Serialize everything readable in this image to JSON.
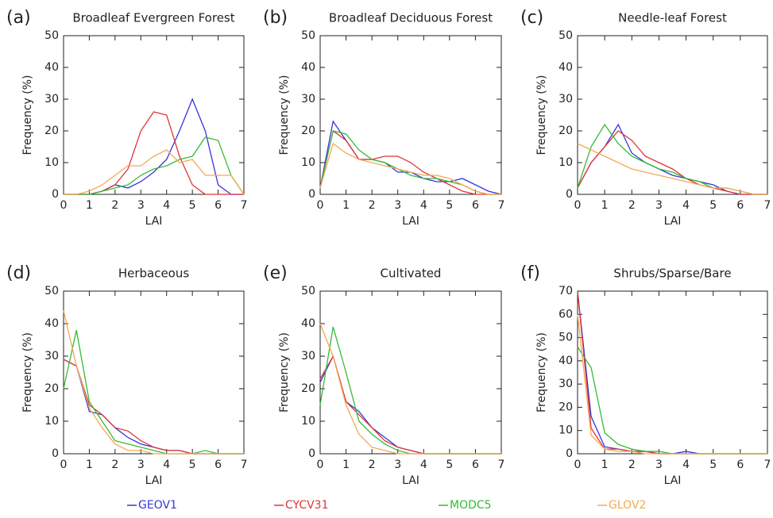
{
  "chart_data": [
    {
      "type": "line",
      "label": "(a)",
      "title": "Broadleaf Evergreen Forest",
      "xlabel": "LAI",
      "ylabel": "Frequency (%)",
      "x": [
        0,
        0.5,
        1,
        1.5,
        2,
        2.5,
        3,
        3.5,
        4,
        4.5,
        5,
        5.5,
        6,
        6.5,
        7
      ],
      "xlim": [
        0,
        7
      ],
      "xticks": [
        0,
        1,
        2,
        3,
        4,
        5,
        6,
        7
      ],
      "ylim": [
        0,
        50
      ],
      "yticks": [
        0,
        10,
        20,
        30,
        40,
        50
      ],
      "series": [
        {
          "name": "GEOV1",
          "color": "#3535dd",
          "values": [
            0,
            0,
            0,
            1,
            3,
            2,
            4,
            7,
            11,
            20,
            30,
            20,
            3,
            0,
            0
          ]
        },
        {
          "name": "CYCV31",
          "color": "#e03535",
          "values": [
            0,
            0,
            0,
            1,
            3,
            8,
            20,
            26,
            25,
            12,
            3,
            0,
            0,
            0,
            0
          ]
        },
        {
          "name": "MODC5",
          "color": "#35bb35",
          "values": [
            0,
            0,
            0,
            1,
            2,
            3,
            6,
            8,
            9,
            11,
            12,
            18,
            17,
            6,
            0
          ]
        },
        {
          "name": "GLOV2",
          "color": "#f5a855",
          "values": [
            0,
            0,
            1,
            3,
            6,
            9,
            9,
            12,
            14,
            10,
            11,
            6,
            6,
            6,
            0
          ]
        }
      ]
    },
    {
      "type": "line",
      "label": "(b)",
      "title": "Broadleaf Deciduous Forest",
      "xlabel": "LAI",
      "ylabel": "Frequency (%)",
      "x": [
        0,
        0.5,
        1,
        1.5,
        2,
        2.5,
        3,
        3.5,
        4,
        4.5,
        5,
        5.5,
        6,
        6.5,
        7
      ],
      "xlim": [
        0,
        7
      ],
      "xticks": [
        0,
        1,
        2,
        3,
        4,
        5,
        6,
        7
      ],
      "ylim": [
        0,
        50
      ],
      "yticks": [
        0,
        10,
        20,
        30,
        40,
        50
      ],
      "series": [
        {
          "name": "GEOV1",
          "color": "#3535dd",
          "values": [
            2,
            23,
            17,
            11,
            11,
            10,
            7,
            7,
            5,
            4,
            4,
            5,
            3,
            1,
            0
          ]
        },
        {
          "name": "CYCV31",
          "color": "#e03535",
          "values": [
            2,
            20,
            17,
            11,
            11,
            12,
            12,
            10,
            7,
            5,
            3,
            1,
            0,
            0,
            0
          ]
        },
        {
          "name": "MODC5",
          "color": "#35bb35",
          "values": [
            2,
            20,
            19,
            14,
            11,
            10,
            8,
            6,
            5,
            5,
            4,
            3,
            1,
            0,
            0
          ]
        },
        {
          "name": "GLOV2",
          "color": "#f5a855",
          "values": [
            2,
            16,
            13,
            11,
            10,
            9,
            8,
            7,
            6,
            6,
            5,
            3,
            1,
            0,
            0
          ]
        }
      ]
    },
    {
      "type": "line",
      "label": "(c)",
      "title": "Needle-leaf Forest",
      "xlabel": "LAI",
      "ylabel": "Frequency (%)",
      "x": [
        0,
        0.5,
        1,
        1.5,
        2,
        2.5,
        3,
        3.5,
        4,
        4.5,
        5,
        5.5,
        6,
        6.5,
        7
      ],
      "xlim": [
        0,
        7
      ],
      "xticks": [
        0,
        1,
        2,
        3,
        4,
        5,
        6,
        7
      ],
      "ylim": [
        0,
        50
      ],
      "yticks": [
        0,
        10,
        20,
        30,
        40,
        50
      ],
      "series": [
        {
          "name": "GEOV1",
          "color": "#3535dd",
          "values": [
            2,
            10,
            15,
            22,
            13,
            10,
            8,
            6,
            5,
            4,
            3,
            1,
            0,
            0,
            0
          ]
        },
        {
          "name": "CYCV31",
          "color": "#e03535",
          "values": [
            2,
            10,
            15,
            20,
            17,
            12,
            10,
            8,
            5,
            3,
            2,
            1,
            0,
            0,
            0
          ]
        },
        {
          "name": "MODC5",
          "color": "#35bb35",
          "values": [
            2,
            15,
            22,
            16,
            12,
            10,
            8,
            7,
            5,
            4,
            2,
            2,
            1,
            0,
            0
          ]
        },
        {
          "name": "GLOV2",
          "color": "#f5a855",
          "values": [
            16,
            14,
            12,
            10,
            8,
            7,
            6,
            5,
            4,
            3,
            2,
            2,
            1,
            0,
            0
          ]
        }
      ]
    },
    {
      "type": "line",
      "label": "(d)",
      "title": "Herbaceous",
      "xlabel": "LAI",
      "ylabel": "Frequency (%)",
      "x": [
        0,
        0.5,
        1,
        1.5,
        2,
        2.5,
        3,
        3.5,
        4,
        4.5,
        5,
        5.5,
        6,
        6.5,
        7
      ],
      "xlim": [
        0,
        7
      ],
      "xticks": [
        0,
        1,
        2,
        3,
        4,
        5,
        6,
        7
      ],
      "ylim": [
        0,
        50
      ],
      "yticks": [
        0,
        10,
        20,
        30,
        40,
        50
      ],
      "series": [
        {
          "name": "GEOV1",
          "color": "#3535dd",
          "values": [
            29,
            27,
            13,
            12,
            8,
            5,
            3,
            2,
            1,
            1,
            0,
            0,
            0,
            0,
            0
          ]
        },
        {
          "name": "CYCV31",
          "color": "#e03535",
          "values": [
            29,
            27,
            15,
            12,
            8,
            7,
            4,
            2,
            1,
            1,
            0,
            0,
            0,
            0,
            0
          ]
        },
        {
          "name": "MODC5",
          "color": "#35bb35",
          "values": [
            20,
            38,
            16,
            10,
            4,
            3,
            2,
            1,
            0,
            0,
            0,
            1,
            0,
            0,
            0
          ]
        },
        {
          "name": "GLOV2",
          "color": "#f5a855",
          "values": [
            44,
            27,
            14,
            8,
            3,
            1,
            1,
            0,
            0,
            0,
            0,
            0,
            0,
            0,
            0
          ]
        }
      ]
    },
    {
      "type": "line",
      "label": "(e)",
      "title": "Cultivated",
      "xlabel": "LAI",
      "ylabel": "Frequency (%)",
      "x": [
        0,
        0.5,
        1,
        1.5,
        2,
        2.5,
        3,
        3.5,
        4,
        4.5,
        5,
        5.5,
        6,
        6.5,
        7
      ],
      "xlim": [
        0,
        7
      ],
      "xticks": [
        0,
        1,
        2,
        3,
        4,
        5,
        6,
        7
      ],
      "ylim": [
        0,
        50
      ],
      "yticks": [
        0,
        10,
        20,
        30,
        40,
        50
      ],
      "series": [
        {
          "name": "GEOV1",
          "color": "#3535dd",
          "values": [
            22,
            30,
            16,
            13,
            8,
            5,
            2,
            1,
            0,
            0,
            0,
            0,
            0,
            0,
            0
          ]
        },
        {
          "name": "CYCV31",
          "color": "#e03535",
          "values": [
            23,
            30,
            16,
            12,
            8,
            4,
            2,
            1,
            0,
            0,
            0,
            0,
            0,
            0,
            0
          ]
        },
        {
          "name": "MODC5",
          "color": "#35bb35",
          "values": [
            15,
            39,
            25,
            10,
            6,
            3,
            1,
            0,
            0,
            0,
            0,
            0,
            0,
            0,
            0
          ]
        },
        {
          "name": "GLOV2",
          "color": "#f5a855",
          "values": [
            40,
            30,
            15,
            6,
            2,
            1,
            0,
            0,
            0,
            0,
            0,
            0,
            0,
            0,
            0
          ]
        }
      ]
    },
    {
      "type": "line",
      "label": "(f)",
      "title": "Shrubs/Sparse/Bare",
      "xlabel": "LAI",
      "ylabel": "Frequency (%)",
      "x": [
        0,
        0.5,
        1,
        1.5,
        2,
        2.5,
        3,
        3.5,
        4,
        4.5,
        5,
        5.5,
        6,
        6.5,
        7
      ],
      "xlim": [
        0,
        7
      ],
      "xticks": [
        0,
        1,
        2,
        3,
        4,
        5,
        6,
        7
      ],
      "ylim": [
        0,
        70
      ],
      "yticks": [
        0,
        10,
        20,
        30,
        40,
        50,
        60,
        70
      ],
      "series": [
        {
          "name": "GEOV1",
          "color": "#3535dd",
          "values": [
            70,
            16,
            3,
            2,
            1,
            1,
            0,
            0,
            1,
            0,
            0,
            0,
            0,
            0,
            0
          ]
        },
        {
          "name": "CYCV31",
          "color": "#e03535",
          "values": [
            70,
            11,
            2,
            2,
            1,
            1,
            0,
            0,
            0,
            0,
            0,
            0,
            0,
            0,
            0
          ]
        },
        {
          "name": "MODC5",
          "color": "#35bb35",
          "values": [
            46,
            37,
            9,
            4,
            2,
            1,
            1,
            0,
            0,
            0,
            0,
            0,
            0,
            0,
            0
          ]
        },
        {
          "name": "GLOV2",
          "color": "#f5a855",
          "values": [
            60,
            8,
            2,
            1,
            1,
            0,
            0,
            0,
            0,
            0,
            0,
            0,
            0,
            0,
            0
          ]
        }
      ]
    }
  ]
}
